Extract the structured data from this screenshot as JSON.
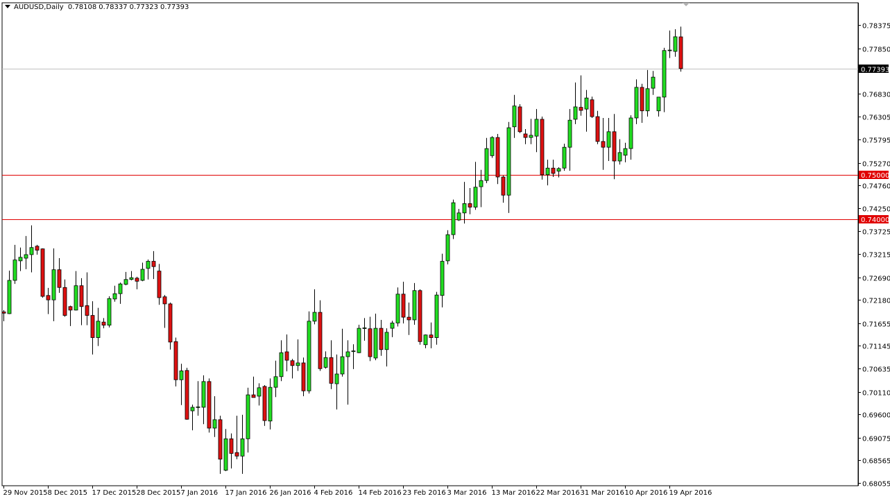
{
  "header": {
    "symbol_timeframe": "AUDUSD,Daily",
    "open": "0.78108",
    "high": "0.78337",
    "low": "0.77323",
    "close": "0.77393"
  },
  "colors": {
    "bull": "#22dd22",
    "bear": "#dd1111",
    "level_line": "#e00000",
    "bid_line": "#c0c0c0",
    "background": "#ffffff"
  },
  "chart_data": {
    "type": "candlestick",
    "title": "AUDUSD,Daily",
    "ylim": [
      0.6797,
      0.7894
    ],
    "y_ticks": [
      "0.78375",
      "0.77850",
      "0.76830",
      "0.76305",
      "0.75795",
      "0.75270",
      "0.74760",
      "0.74250",
      "0.73725",
      "0.73215",
      "0.72690",
      "0.72180",
      "0.71655",
      "0.71145",
      "0.70635",
      "0.70110",
      "0.69600",
      "0.69075",
      "0.68565",
      "0.68055"
    ],
    "x_tick_labels": [
      "29 Nov 2015",
      "8 Dec 2015",
      "17 Dec 2015",
      "28 Dec 2015",
      "7 Jan 2016",
      "17 Jan 2016",
      "26 Jan 2016",
      "4 Feb 2016",
      "14 Feb 2016",
      "23 Feb 2016",
      "3 Mar 2016",
      "13 Mar 2016",
      "22 Mar 2016",
      "31 Mar 2016",
      "10 Apr 2016",
      "19 Apr 2016"
    ],
    "x_tick_every_bars": 8,
    "horizontal_levels": [
      {
        "price": "0.75000",
        "color": "#e00000"
      },
      {
        "price": "0.74000",
        "color": "#e00000"
      }
    ],
    "bid": "0.77393",
    "grid": false,
    "ohlc": [
      [
        0.7191,
        0.7195,
        0.717,
        0.7188
      ],
      [
        0.7187,
        0.7284,
        0.7186,
        0.7262
      ],
      [
        0.7262,
        0.7342,
        0.7254,
        0.7308
      ],
      [
        0.7306,
        0.7336,
        0.7283,
        0.7314
      ],
      [
        0.7312,
        0.7362,
        0.7287,
        0.732
      ],
      [
        0.732,
        0.7386,
        0.728,
        0.7336
      ],
      [
        0.7339,
        0.7342,
        0.732,
        0.733
      ],
      [
        0.7333,
        0.7334,
        0.7223,
        0.7226
      ],
      [
        0.7228,
        0.7245,
        0.7186,
        0.7218
      ],
      [
        0.7218,
        0.7334,
        0.717,
        0.7286
      ],
      [
        0.7286,
        0.7312,
        0.7234,
        0.7246
      ],
      [
        0.7246,
        0.7264,
        0.718,
        0.7183
      ],
      [
        0.7203,
        0.7205,
        0.7159,
        0.7195
      ],
      [
        0.7195,
        0.7283,
        0.7194,
        0.725
      ],
      [
        0.725,
        0.7267,
        0.7161,
        0.7203
      ],
      [
        0.7205,
        0.728,
        0.7161,
        0.7183
      ],
      [
        0.7183,
        0.7215,
        0.7095,
        0.7133
      ],
      [
        0.7133,
        0.72,
        0.7114,
        0.717
      ],
      [
        0.7168,
        0.7177,
        0.7154,
        0.7161
      ],
      [
        0.7161,
        0.7226,
        0.7156,
        0.7221
      ],
      [
        0.722,
        0.725,
        0.7214,
        0.7232
      ],
      [
        0.7232,
        0.7257,
        0.7209,
        0.7254
      ],
      [
        0.7253,
        0.7281,
        0.7251,
        0.7264
      ],
      [
        0.7264,
        0.7283,
        0.7262,
        0.7268
      ],
      [
        0.7267,
        0.727,
        0.7242,
        0.726
      ],
      [
        0.7262,
        0.7302,
        0.726,
        0.7287
      ],
      [
        0.7289,
        0.7309,
        0.7264,
        0.7305
      ],
      [
        0.7305,
        0.7328,
        0.7265,
        0.7293
      ],
      [
        0.7283,
        0.7299,
        0.7207,
        0.7223
      ],
      [
        0.7225,
        0.7229,
        0.7155,
        0.7209
      ],
      [
        0.7209,
        0.7212,
        0.7106,
        0.7123
      ],
      [
        0.7124,
        0.7133,
        0.7023,
        0.7038
      ],
      [
        0.7038,
        0.7074,
        0.6981,
        0.7058
      ],
      [
        0.7059,
        0.7065,
        0.6948,
        0.6949
      ],
      [
        0.6968,
        0.6982,
        0.6924,
        0.6976
      ],
      [
        0.6976,
        0.7035,
        0.6957,
        0.6977
      ],
      [
        0.6976,
        0.7048,
        0.6938,
        0.7034
      ],
      [
        0.7034,
        0.7041,
        0.6919,
        0.6929
      ],
      [
        0.6929,
        0.7001,
        0.6909,
        0.6948
      ],
      [
        0.6948,
        0.6957,
        0.6826,
        0.6859
      ],
      [
        0.6834,
        0.6927,
        0.6832,
        0.6905
      ],
      [
        0.6905,
        0.6917,
        0.6838,
        0.6872
      ],
      [
        0.6874,
        0.6957,
        0.6859,
        0.6866
      ],
      [
        0.6866,
        0.6959,
        0.6826,
        0.6905
      ],
      [
        0.6905,
        0.702,
        0.6874,
        0.7004
      ],
      [
        0.7004,
        0.7045,
        0.6998,
        0.6998
      ],
      [
        0.7001,
        0.703,
        0.698,
        0.702
      ],
      [
        0.7023,
        0.7026,
        0.6934,
        0.6946
      ],
      [
        0.6945,
        0.7041,
        0.6926,
        0.7021
      ],
      [
        0.7021,
        0.7081,
        0.6999,
        0.7045
      ],
      [
        0.7045,
        0.7127,
        0.7035,
        0.7099
      ],
      [
        0.7101,
        0.714,
        0.7057,
        0.7082
      ],
      [
        0.7081,
        0.7085,
        0.7041,
        0.707
      ],
      [
        0.707,
        0.7129,
        0.7058,
        0.7076
      ],
      [
        0.7076,
        0.7088,
        0.7001,
        0.7013
      ],
      [
        0.7013,
        0.7192,
        0.7007,
        0.717
      ],
      [
        0.717,
        0.7242,
        0.7163,
        0.719
      ],
      [
        0.719,
        0.7217,
        0.7058,
        0.7063
      ],
      [
        0.7066,
        0.7102,
        0.7063,
        0.7088
      ],
      [
        0.7088,
        0.7127,
        0.7017,
        0.703
      ],
      [
        0.7029,
        0.7095,
        0.6971,
        0.7051
      ],
      [
        0.7051,
        0.7153,
        0.7045,
        0.709
      ],
      [
        0.709,
        0.7127,
        0.6982,
        0.7101
      ],
      [
        0.7102,
        0.7118,
        0.7062,
        0.7103
      ],
      [
        0.7099,
        0.7162,
        0.7098,
        0.7154
      ],
      [
        0.7154,
        0.7177,
        0.7126,
        0.7155
      ],
      [
        0.7153,
        0.718,
        0.708,
        0.709
      ],
      [
        0.7087,
        0.7187,
        0.7082,
        0.7154
      ],
      [
        0.7154,
        0.7173,
        0.7092,
        0.7106
      ],
      [
        0.7106,
        0.7154,
        0.7068,
        0.7145
      ],
      [
        0.7154,
        0.7171,
        0.7134,
        0.7166
      ],
      [
        0.7166,
        0.7246,
        0.7158,
        0.7231
      ],
      [
        0.7231,
        0.7259,
        0.7165,
        0.7179
      ],
      [
        0.7179,
        0.7212,
        0.7139,
        0.7173
      ],
      [
        0.7173,
        0.7256,
        0.7162,
        0.7239
      ],
      [
        0.7239,
        0.7242,
        0.7117,
        0.7124
      ],
      [
        0.7117,
        0.714,
        0.7109,
        0.7139
      ],
      [
        0.7139,
        0.7167,
        0.7109,
        0.7133
      ],
      [
        0.7133,
        0.7236,
        0.7117,
        0.7229
      ],
      [
        0.7228,
        0.7322,
        0.7201,
        0.7305
      ],
      [
        0.7306,
        0.7375,
        0.7298,
        0.7365
      ],
      [
        0.7365,
        0.7444,
        0.7355,
        0.7437
      ],
      [
        0.7398,
        0.7423,
        0.7396,
        0.7414
      ],
      [
        0.7414,
        0.7484,
        0.739,
        0.7435
      ],
      [
        0.7435,
        0.747,
        0.7411,
        0.7427
      ],
      [
        0.7427,
        0.7529,
        0.7421,
        0.7472
      ],
      [
        0.7473,
        0.7511,
        0.7427,
        0.7487
      ],
      [
        0.7487,
        0.7583,
        0.7481,
        0.7559
      ],
      [
        0.7543,
        0.7587,
        0.7538,
        0.7584
      ],
      [
        0.7584,
        0.7592,
        0.7479,
        0.7495
      ],
      [
        0.7495,
        0.7498,
        0.7437,
        0.7454
      ],
      [
        0.7454,
        0.7619,
        0.7414,
        0.7606
      ],
      [
        0.7608,
        0.768,
        0.7583,
        0.7655
      ],
      [
        0.7653,
        0.7659,
        0.7594,
        0.7597
      ],
      [
        0.7592,
        0.7603,
        0.7569,
        0.7584
      ],
      [
        0.7584,
        0.7626,
        0.7569,
        0.7589
      ],
      [
        0.7587,
        0.7648,
        0.7551,
        0.7625
      ],
      [
        0.7625,
        0.7631,
        0.7489,
        0.75
      ],
      [
        0.75,
        0.7534,
        0.7476,
        0.7515
      ],
      [
        0.7515,
        0.7534,
        0.7495,
        0.7503
      ],
      [
        0.7508,
        0.7517,
        0.7494,
        0.7514
      ],
      [
        0.7515,
        0.757,
        0.7509,
        0.7562
      ],
      [
        0.7562,
        0.7648,
        0.7509,
        0.7623
      ],
      [
        0.7625,
        0.7708,
        0.7614,
        0.7653
      ],
      [
        0.7652,
        0.7724,
        0.7633,
        0.7645
      ],
      [
        0.7648,
        0.7691,
        0.7597,
        0.7673
      ],
      [
        0.7669,
        0.7676,
        0.7628,
        0.7631
      ],
      [
        0.7631,
        0.7644,
        0.7569,
        0.7575
      ],
      [
        0.7575,
        0.7628,
        0.7511,
        0.7562
      ],
      [
        0.7562,
        0.7628,
        0.7531,
        0.7597
      ],
      [
        0.7597,
        0.7637,
        0.749,
        0.7531
      ],
      [
        0.7531,
        0.758,
        0.7523,
        0.755
      ],
      [
        0.7544,
        0.7572,
        0.7528,
        0.7559
      ],
      [
        0.7559,
        0.7634,
        0.7534,
        0.7628
      ],
      [
        0.7628,
        0.7715,
        0.7614,
        0.7697
      ],
      [
        0.7697,
        0.7705,
        0.7617,
        0.7644
      ],
      [
        0.7644,
        0.7736,
        0.7631,
        0.7694
      ],
      [
        0.7695,
        0.7734,
        0.768,
        0.772
      ],
      [
        0.7644,
        0.7675,
        0.7631,
        0.7675
      ],
      [
        0.7675,
        0.7786,
        0.7641,
        0.778
      ],
      [
        0.778,
        0.7825,
        0.7763,
        0.7781
      ],
      [
        0.7778,
        0.7828,
        0.7766,
        0.7811
      ],
      [
        0.78108,
        0.78337,
        0.77323,
        0.77393
      ]
    ]
  }
}
